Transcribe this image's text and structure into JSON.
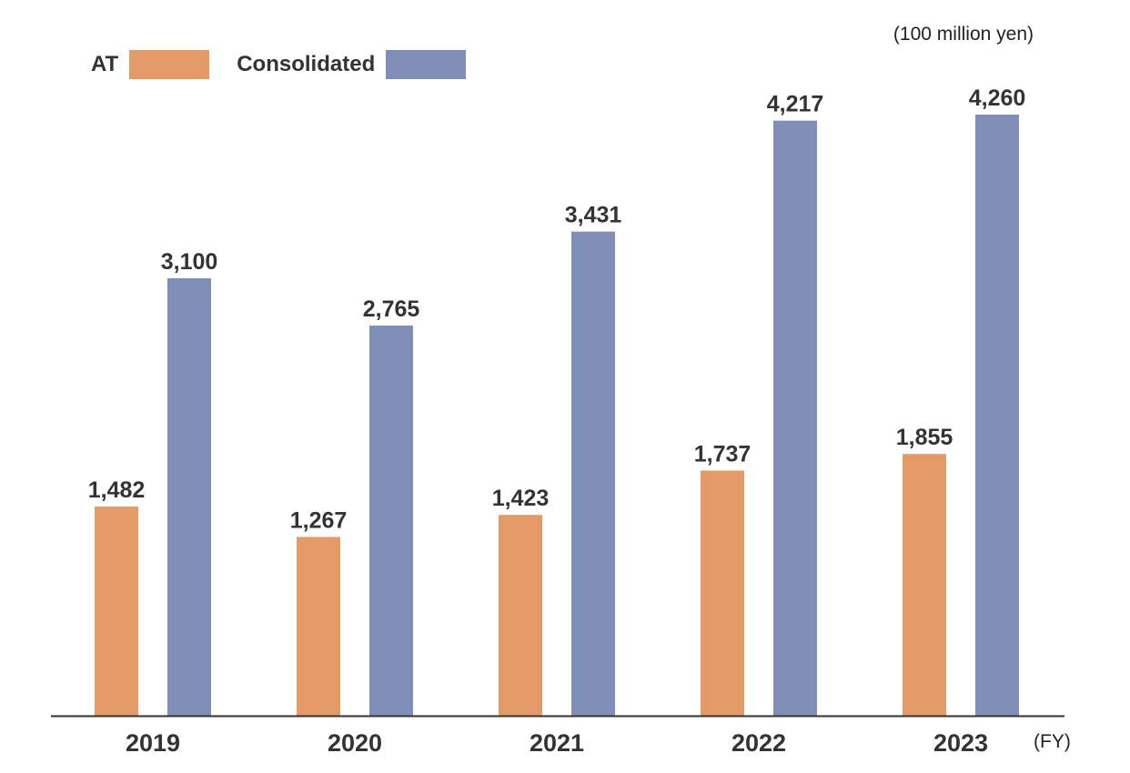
{
  "unit_label": "(100 million yen)",
  "x_unit_label": "(FY)",
  "colors": {
    "at": "#E39A66",
    "consolidated": "#7F8FB8",
    "axis": "#333333",
    "text": "#333333"
  },
  "legend": [
    {
      "label": "AT",
      "color": "#E39A66"
    },
    {
      "label": "Consolidated",
      "color": "#7F8FB8"
    }
  ],
  "chart_data": {
    "type": "bar",
    "title": "",
    "xlabel": "(FY)",
    "ylabel": "(100 million yen)",
    "categories": [
      "2019",
      "2020",
      "2021",
      "2022",
      "2023"
    ],
    "series": [
      {
        "name": "AT",
        "values": [
          1482,
          1267,
          1423,
          1737,
          1855
        ],
        "labels": [
          "1,482",
          "1,267",
          "1,423",
          "1,737",
          "1,855"
        ]
      },
      {
        "name": "Consolidated",
        "values": [
          3100,
          2765,
          3431,
          4217,
          4260
        ],
        "labels": [
          "3,100",
          "2,765",
          "3,431",
          "4,217",
          "4,260"
        ]
      }
    ],
    "ylim": [
      0,
      4260
    ],
    "grid": false,
    "legend_position": "top-left"
  }
}
